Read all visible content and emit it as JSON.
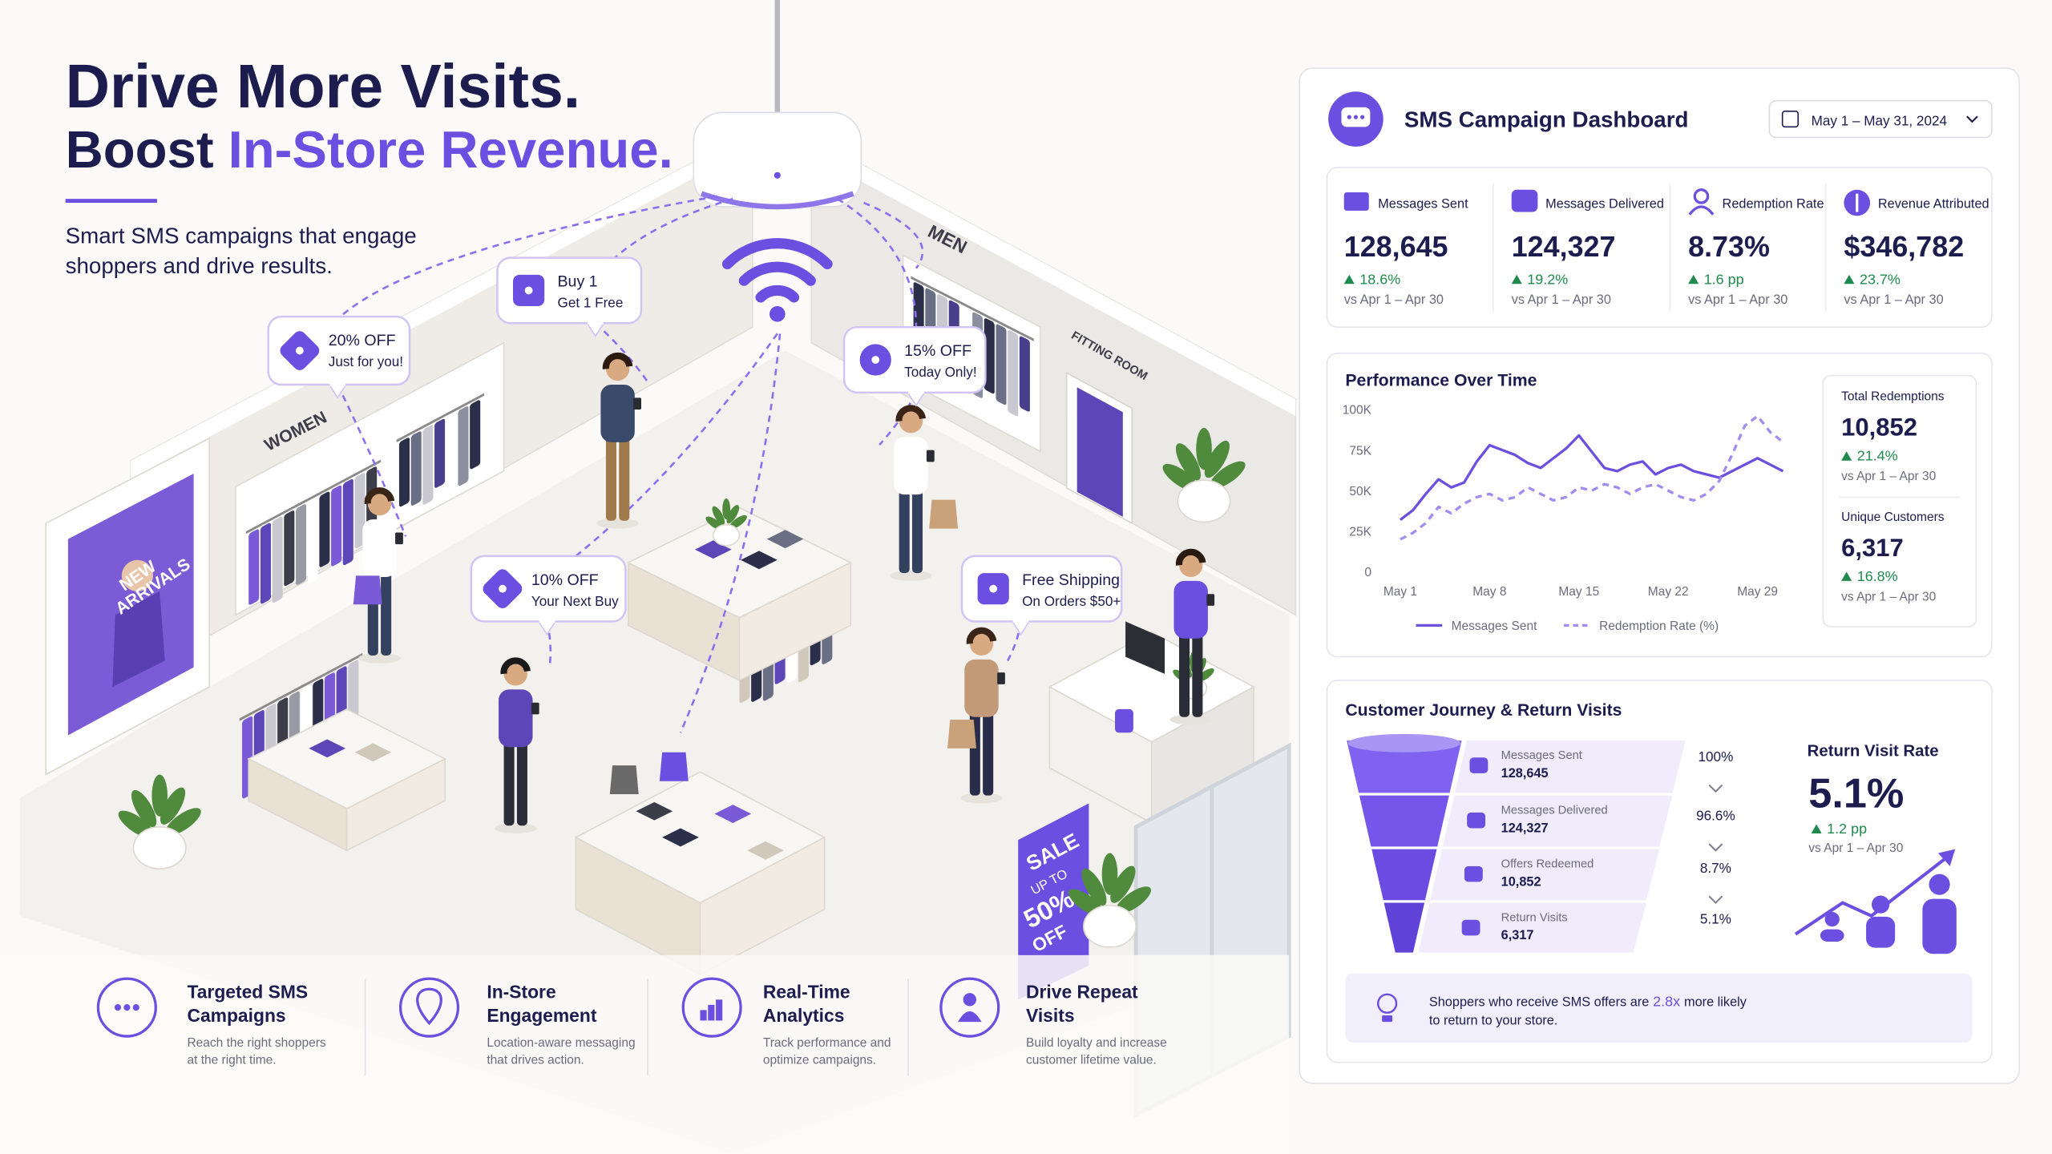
{
  "hero": {
    "title_line1": "Drive More Visits.",
    "title_line2_a": "Boost",
    "title_line2_b": "In-Store Revenue.",
    "subtitle_lines": [
      "Smart SMS campaigns that engage",
      "shoppers and drive results."
    ]
  },
  "store": {
    "signs": {
      "women": "WOMEN",
      "men": "MEN",
      "fitting_room": "FITTING ROOM",
      "new_arrivals": [
        "NEW",
        "ARRIVALS"
      ],
      "sale": [
        "SALE",
        "UP TO",
        "50%",
        "OFF"
      ]
    },
    "offers": [
      {
        "lines": [
          "20% OFF",
          "Just for you!"
        ]
      },
      {
        "lines": [
          "Buy 1",
          "Get 1 Free"
        ]
      },
      {
        "lines": [
          "15% OFF",
          "Today Only!"
        ]
      },
      {
        "lines": [
          "10% OFF",
          "Your Next Buy"
        ]
      },
      {
        "lines": [
          "Free Shipping",
          "On Orders $50+"
        ]
      }
    ]
  },
  "features": [
    {
      "title": [
        "Targeted SMS",
        "Campaigns"
      ],
      "desc": [
        "Reach the right shoppers",
        "at the right time."
      ]
    },
    {
      "title": [
        "In-Store",
        "Engagement"
      ],
      "desc": [
        "Location-aware messaging",
        "that drives action."
      ]
    },
    {
      "title": [
        "Real-Time",
        "Analytics"
      ],
      "desc": [
        "Track performance and",
        "optimize campaigns."
      ]
    },
    {
      "title": [
        "Drive Repeat",
        "Visits"
      ],
      "desc": [
        "Build loyalty and increase",
        "customer lifetime value."
      ]
    }
  ],
  "dashboard": {
    "title": "SMS Campaign Dashboard",
    "date_range": "May 1 – May 31, 2024",
    "kpis": [
      {
        "label": "Messages Sent",
        "value": "128,645",
        "change": "18.6%",
        "compare": "vs Apr 1 – Apr 30"
      },
      {
        "label": "Messages Delivered",
        "value": "124,327",
        "change": "19.2%",
        "compare": "vs Apr 1 – Apr 30"
      },
      {
        "label": "Redemption Rate",
        "value": "8.73%",
        "change": "1.6 pp",
        "compare": "vs Apr 1 – Apr 30"
      },
      {
        "label": "Revenue Attributed",
        "value": "$346,782",
        "change": "23.7%",
        "compare": "vs Apr 1 – Apr 30"
      }
    ],
    "performance": {
      "title": "Performance Over Time",
      "chart": {
        "type": "line",
        "categories": [
          "May 1",
          null,
          null,
          null,
          null,
          null,
          null,
          "May 8",
          null,
          null,
          null,
          null,
          null,
          null,
          "May 15",
          null,
          null,
          null,
          null,
          null,
          null,
          "May 22",
          null,
          null,
          null,
          null,
          null,
          null,
          "May 29",
          null,
          null
        ],
        "series": [
          {
            "name": "Messages Sent",
            "color": "#6b4fe0",
            "line_style": "solid",
            "values": [
              32000,
              38000,
              48000,
              57000,
              52000,
              55000,
              68000,
              78000,
              75000,
              72000,
              67000,
              64000,
              70000,
              76000,
              84000,
              74000,
              64000,
              62000,
              66000,
              68000,
              60000,
              64000,
              66000,
              62000,
              60000,
              58000,
              62000,
              66000,
              70000,
              66000,
              62000
            ]
          },
          {
            "name": "Redemption Rate (%)",
            "color": "#a08cf0",
            "line_style": "dashed",
            "values": [
              20000,
              24000,
              30000,
              40000,
              36000,
              42000,
              46000,
              48000,
              44000,
              46000,
              52000,
              48000,
              44000,
              46000,
              52000,
              50000,
              54000,
              52000,
              48000,
              52000,
              54000,
              50000,
              46000,
              44000,
              48000,
              56000,
              72000,
              90000,
              96000,
              86000,
              80000
            ]
          }
        ],
        "ylim": [
          0,
          100000
        ],
        "yticks": [
          0,
          {
            "value": 25000,
            "label": "25K"
          },
          {
            "value": 50000,
            "label": "50K"
          },
          {
            "value": 75000,
            "label": "75K"
          },
          {
            "value": 100000,
            "label": "100K"
          }
        ],
        "grid": false
      },
      "side": [
        {
          "label": "Total Redemptions",
          "value": "10,852",
          "change": "21.4%",
          "compare": "vs Apr 1 – Apr 30"
        },
        {
          "label": "Unique Customers",
          "value": "6,317",
          "change": "16.8%",
          "compare": "vs Apr 1 – Apr 30"
        }
      ]
    },
    "journey": {
      "title": "Customer Journey & Return Visits",
      "stages": [
        {
          "label": "Messages Sent",
          "value": "128,645"
        },
        {
          "label": "Messages Delivered",
          "value": "124,327"
        },
        {
          "label": "Offers Redeemed",
          "value": "10,852"
        },
        {
          "label": "Return Visits",
          "value": "6,317"
        }
      ],
      "rates": [
        "100%",
        "96.6%",
        "8.7%",
        "5.1%"
      ],
      "return_rate": {
        "label": "Return Visit Rate",
        "value": "5.1%",
        "change": "1.2 pp",
        "compare": "vs Apr 1 – Apr 30"
      },
      "insight": {
        "before": "Shoppers who receive SMS offers are",
        "highlight": "2.8x",
        "after": "more likely",
        "line2": "to return to your store."
      }
    }
  }
}
